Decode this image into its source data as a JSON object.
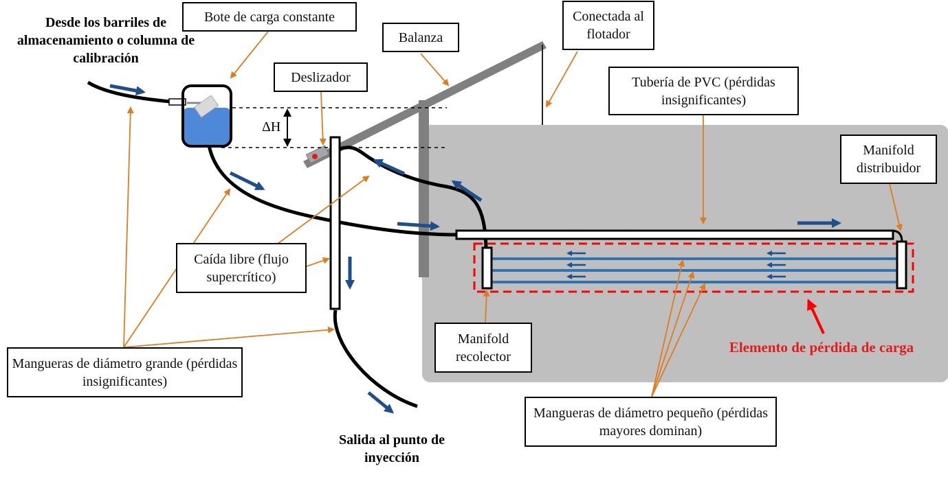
{
  "labels": {
    "source": "Desde los barriles de almacenamiento o columna de calibración",
    "constant_head": "Bote de carga constante",
    "balance": "Balanza",
    "float": "Conectada al flotador",
    "slider": "Deslizador",
    "pvc_pipe": "Tubería de PVC (pérdidas insignificantes)",
    "manifold_dist": "Manifold distribuidor",
    "free_fall": "Caída libre (flujo supercrítico)",
    "large_hoses": "Mangueras de diámetro grande (pérdidas insignificantes)",
    "manifold_coll": "Manifold recolector",
    "head_loss": "Elemento de pérdida de carga",
    "small_hoses": "Mangueras de diámetro pequeño (pérdidas mayores dominan)",
    "outlet": "Salida al punto de inyección",
    "delta_h": "ΔH"
  },
  "colors": {
    "hose": "#000000",
    "flow_arrow": "#1f4e8c",
    "leader": "#e07b1e",
    "water": "#4f88d8",
    "panel": "#bfbfbf",
    "balance_arm": "#808080",
    "small_hose": "#2e75b6",
    "loss_box": "#ff0000"
  }
}
